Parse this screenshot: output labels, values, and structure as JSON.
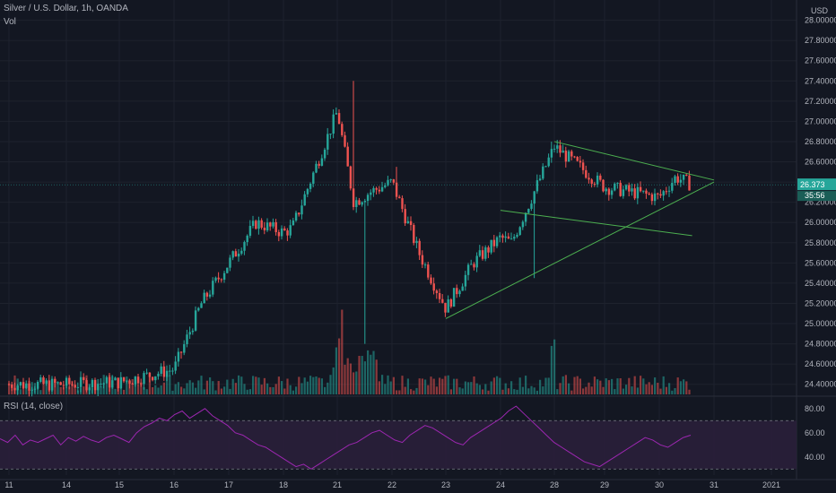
{
  "header": {
    "symbol": "Silver / U.S. Dollar, 1h, OANDA",
    "volume_label": "Vol"
  },
  "price_axis": {
    "currency": "USD",
    "ticks": [
      "28.20000",
      "28.00000",
      "27.80000",
      "27.60000",
      "27.40000",
      "27.20000",
      "27.00000",
      "26.80000",
      "26.60000",
      "26.40000",
      "26.20000",
      "26.00000",
      "25.80000",
      "25.60000",
      "25.40000",
      "25.20000",
      "25.00000",
      "24.80000",
      "24.60000",
      "24.40000"
    ],
    "last_price": "26.373",
    "countdown": "35:56"
  },
  "rsi": {
    "title": "RSI (14, close)",
    "ticks": [
      "80.00",
      "60.00",
      "40.00"
    ]
  },
  "time_axis": {
    "ticks": [
      "11",
      "14",
      "15",
      "16",
      "17",
      "18",
      "21",
      "22",
      "23",
      "24",
      "28",
      "29",
      "30",
      "31",
      "2021"
    ]
  },
  "colors": {
    "background": "#131722",
    "up": "#26a69a",
    "down": "#ef5350",
    "rsi_line": "#9c27b0",
    "rsi_band": "#2a1f3a",
    "trendline": "#4caf50",
    "price_label": "#26a69a"
  },
  "chart_data": [
    {
      "type": "candlestick",
      "title": "Silver / U.S. Dollar, 1h, OANDA",
      "ylabel": "USD",
      "ylim": [
        24.3,
        28.2
      ],
      "x": [
        "11",
        "14",
        "15",
        "16",
        "17",
        "18",
        "21",
        "22",
        "23",
        "24",
        "28",
        "29",
        "30"
      ],
      "ohlc_anchors": [
        {
          "date": "11",
          "close": 24.4
        },
        {
          "date": "14",
          "close": 24.4
        },
        {
          "date": "15",
          "close": 24.42
        },
        {
          "date": "16",
          "close": 24.55
        },
        {
          "date": "16.5",
          "close": 25.2
        },
        {
          "date": "17",
          "close": 25.6
        },
        {
          "date": "17.5",
          "close": 26.0
        },
        {
          "date": "18",
          "close": 25.9
        },
        {
          "date": "18.5",
          "close": 25.95
        },
        {
          "date": "21",
          "close": 27.1
        },
        {
          "date": "21.3",
          "close": 26.2
        },
        {
          "date": "21.6",
          "close": 26.3
        },
        {
          "date": "22",
          "close": 26.4
        },
        {
          "date": "22.5",
          "close": 25.7
        },
        {
          "date": "23",
          "close": 25.15
        },
        {
          "date": "23.5",
          "close": 25.6
        },
        {
          "date": "24",
          "close": 25.85
        },
        {
          "date": "24.8",
          "close": 25.8
        },
        {
          "date": "28",
          "close": 26.75
        },
        {
          "date": "29",
          "close": 26.35
        },
        {
          "date": "30",
          "close": 26.25
        },
        {
          "date": "30.3",
          "close": 26.45
        },
        {
          "date": "30.6",
          "close": 26.37
        }
      ],
      "trendlines": [
        {
          "name": "upper",
          "from": {
            "date": "28",
            "price": 26.8
          },
          "to": {
            "date": "31",
            "price": 26.42
          }
        },
        {
          "name": "channel-lower",
          "from": {
            "date": "24",
            "price": 26.12
          },
          "to": {
            "date": "30.6",
            "price": 25.87
          }
        },
        {
          "name": "support",
          "from": {
            "date": "23",
            "price": 25.05
          },
          "to": {
            "date": "31",
            "price": 26.4
          }
        }
      ],
      "last_price": 26.373
    },
    {
      "type": "line",
      "title": "RSI (14, close)",
      "ylim": [
        25,
        88
      ],
      "bands": [
        30,
        70
      ],
      "values": [
        55,
        52,
        58,
        50,
        54,
        52,
        55,
        58,
        50,
        56,
        53,
        57,
        54,
        52,
        56,
        58,
        55,
        52,
        60,
        65,
        68,
        72,
        70,
        75,
        78,
        72,
        76,
        80,
        74,
        70,
        66,
        60,
        58,
        54,
        50,
        48,
        44,
        40,
        36,
        32,
        34,
        30,
        34,
        38,
        42,
        46,
        50,
        52,
        56,
        60,
        62,
        58,
        54,
        52,
        58,
        62,
        66,
        64,
        60,
        56,
        52,
        50,
        56,
        60,
        64,
        68,
        72,
        78,
        82,
        76,
        70,
        64,
        58,
        52,
        48,
        44,
        40,
        36,
        34,
        32,
        36,
        40,
        44,
        48,
        52,
        56,
        54,
        50,
        48,
        52,
        56,
        58
      ]
    }
  ]
}
